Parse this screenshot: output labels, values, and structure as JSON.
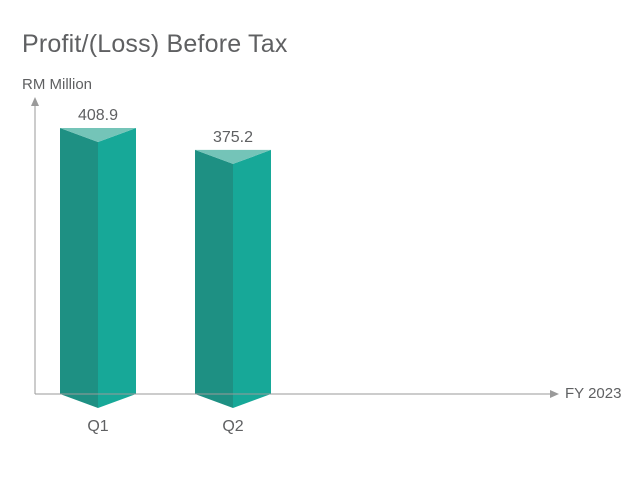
{
  "chart_data": {
    "type": "bar",
    "title": "Profit/(Loss) Before Tax",
    "ylabel": "RM Million",
    "xlabel": "FY 2023",
    "categories": [
      "Q1",
      "Q2"
    ],
    "values": [
      408.9,
      375.2
    ],
    "value_labels": [
      "408.9",
      "375.2"
    ],
    "ylim": [
      0,
      408.9
    ],
    "grid": false,
    "legend": "none",
    "style": "3d-prism"
  },
  "colors": {
    "bar_left_face": "#1e9083",
    "bar_right_face": "#17a898",
    "bar_top_face": "#74c4b8",
    "axis": "#9a9a9a",
    "text": "#5f6062"
  }
}
